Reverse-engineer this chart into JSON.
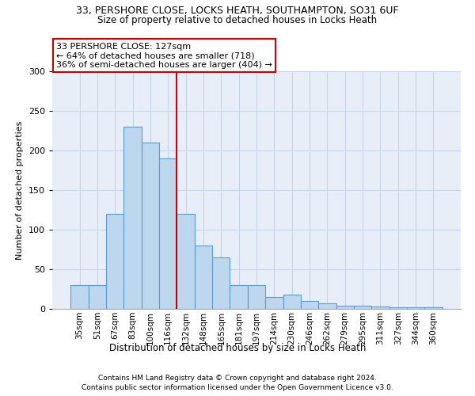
{
  "title_line1": "33, PERSHORE CLOSE, LOCKS HEATH, SOUTHAMPTON, SO31 6UF",
  "title_line2": "Size of property relative to detached houses in Locks Heath",
  "xlabel": "Distribution of detached houses by size in Locks Heath",
  "ylabel": "Number of detached properties",
  "footnote_line1": "Contains HM Land Registry data © Crown copyright and database right 2024.",
  "footnote_line2": "Contains public sector information licensed under the Open Government Licence v3.0.",
  "annotation_line1": "33 PERSHORE CLOSE: 127sqm",
  "annotation_line2": "← 64% of detached houses are smaller (718)",
  "annotation_line3": "36% of semi-detached houses are larger (404) →",
  "bar_edge_color": "#5b9bd5",
  "bar_face_color": "#bdd7ee",
  "vline_color": "#cc0000",
  "annotation_box_edge": "#cc0000",
  "annotation_box_face": "white",
  "grid_color": "#c8d4e8",
  "background_color": "#e8eef8",
  "categories": [
    "35sqm",
    "51sqm",
    "67sqm",
    "83sqm",
    "100sqm",
    "116sqm",
    "132sqm",
    "148sqm",
    "165sqm",
    "181sqm",
    "197sqm",
    "214sqm",
    "230sqm",
    "246sqm",
    "262sqm",
    "279sqm",
    "295sqm",
    "311sqm",
    "327sqm",
    "344sqm",
    "360sqm"
  ],
  "values": [
    30,
    30,
    120,
    230,
    210,
    190,
    120,
    80,
    65,
    30,
    30,
    15,
    18,
    10,
    7,
    4,
    4,
    3,
    2,
    2,
    2
  ],
  "vline_index": 5.5,
  "ylim": [
    0,
    300
  ],
  "yticks": [
    0,
    50,
    100,
    150,
    200,
    250,
    300
  ]
}
